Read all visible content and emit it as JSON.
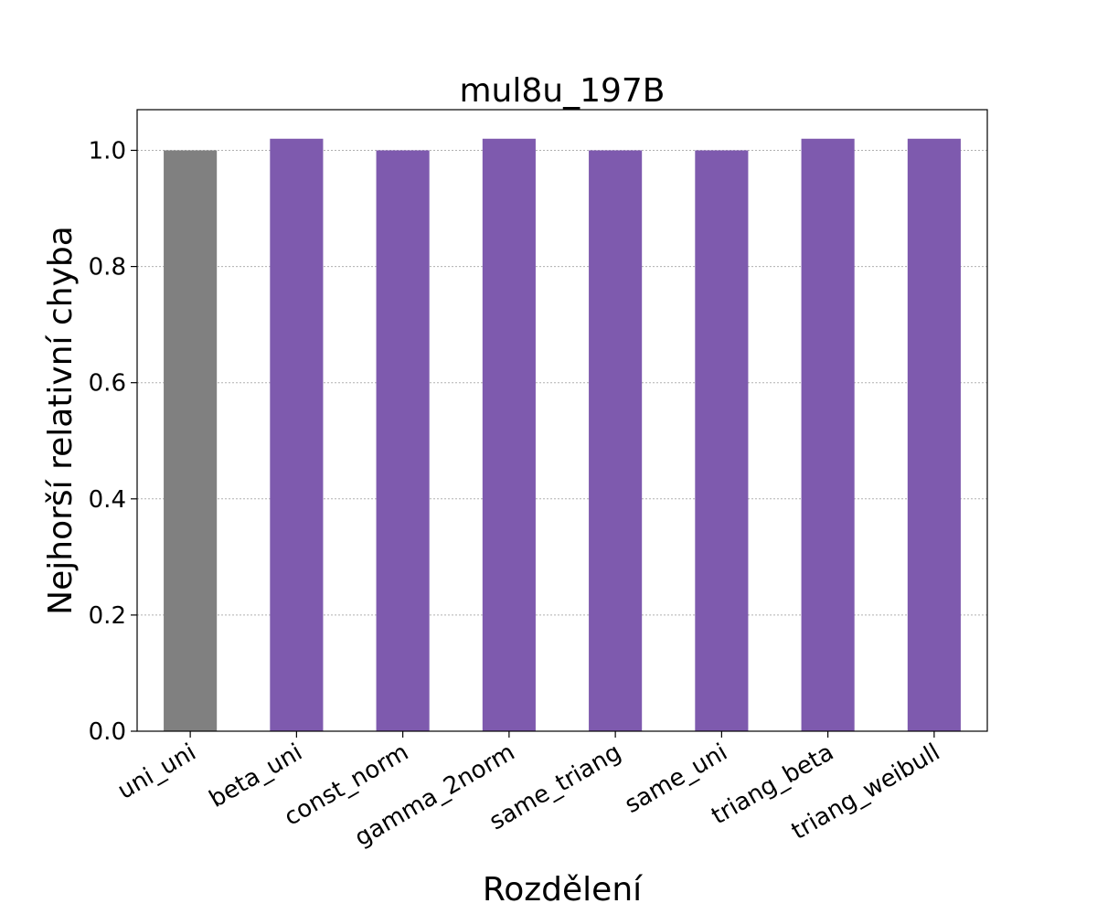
{
  "chart_data": {
    "type": "bar",
    "title": "mul8u_197B",
    "xlabel": "Rozdělení",
    "ylabel": "Nejhorší relativní chyba",
    "categories": [
      "uni_uni",
      "beta_uni",
      "const_norm",
      "gamma_2norm",
      "same_triang",
      "same_uni",
      "triang_beta",
      "triang_weibull"
    ],
    "values": [
      1.0,
      1.02,
      1.0,
      1.02,
      1.0,
      1.0,
      1.02,
      1.02
    ],
    "bar_colors": [
      "#808080",
      "#7e5aae",
      "#7e5aae",
      "#7e5aae",
      "#7e5aae",
      "#7e5aae",
      "#7e5aae",
      "#7e5aae"
    ],
    "ylim": [
      0,
      1.07
    ],
    "yticks": [
      0.0,
      0.2,
      0.4,
      0.6,
      0.8,
      1.0
    ],
    "ytick_labels": [
      "0.0",
      "0.2",
      "0.4",
      "0.6",
      "0.8",
      "1.0"
    ],
    "grid": true,
    "legend": "none"
  }
}
